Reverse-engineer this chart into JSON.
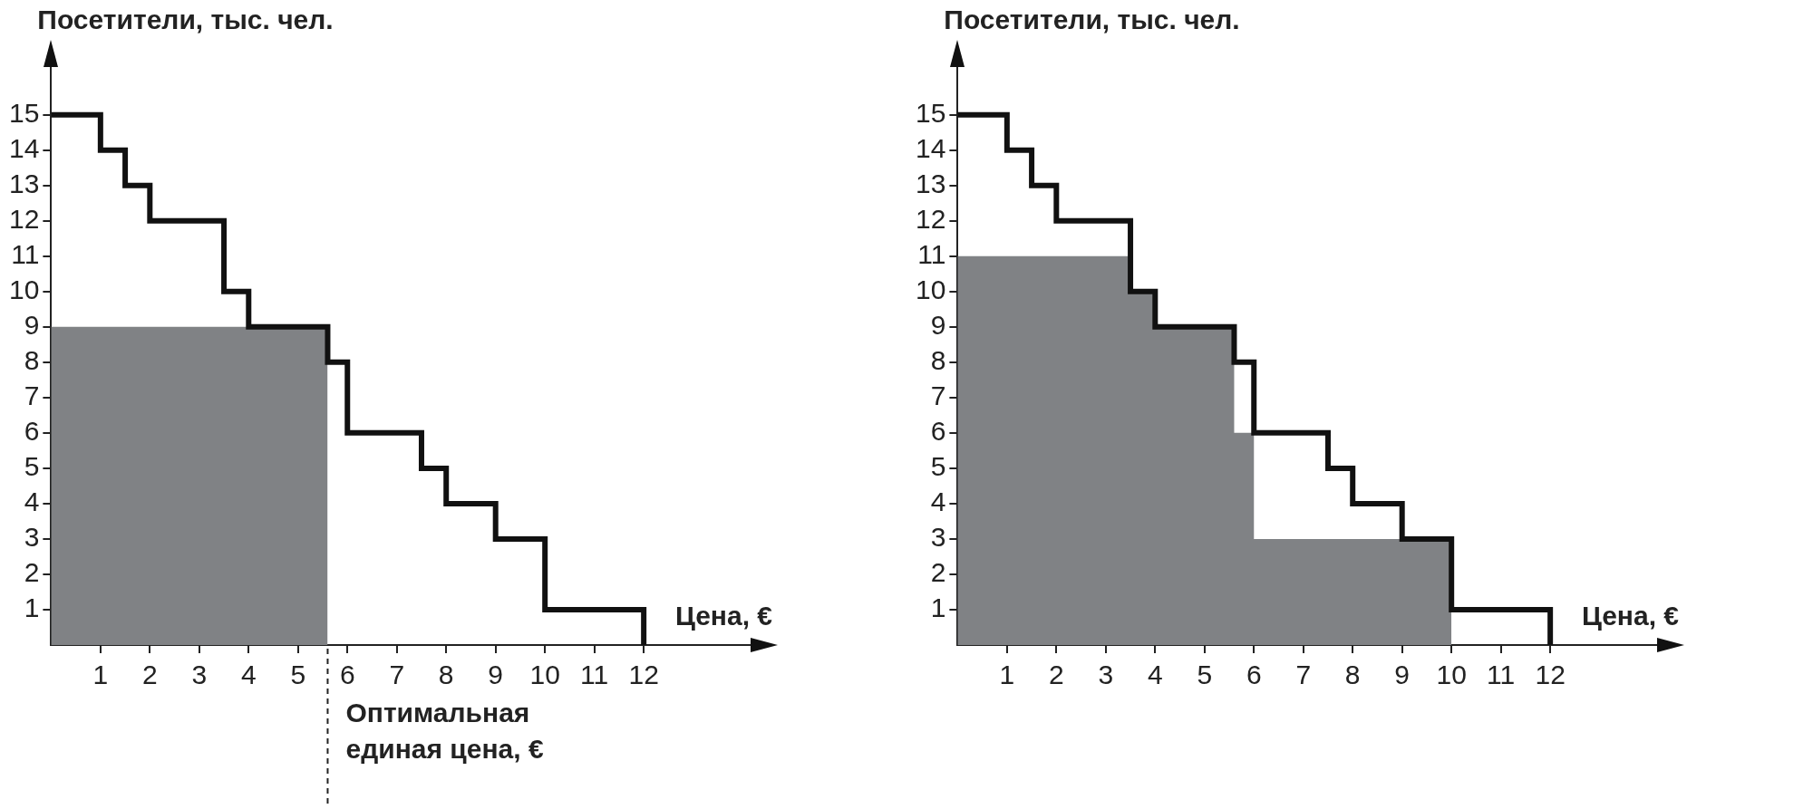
{
  "chart_data": [
    {
      "type": "step",
      "xlabel": "Цена, €",
      "ylabel": "Посетители, тыс. чел.",
      "xlim": [
        0,
        14.2
      ],
      "ylim": [
        0,
        16.4
      ],
      "xticks": [
        1,
        2,
        3,
        4,
        5,
        6,
        7,
        8,
        9,
        10,
        11,
        12
      ],
      "yticks": [
        1,
        2,
        3,
        4,
        5,
        6,
        7,
        8,
        9,
        10,
        11,
        12,
        13,
        14,
        15
      ],
      "grid": false,
      "legend": false,
      "series": [
        {
          "type": "area",
          "color": "#808285",
          "x": [
            0,
            5.6
          ],
          "values": [
            9,
            0
          ]
        },
        {
          "type": "step",
          "color": "#111111",
          "x": [
            0,
            1,
            1.5,
            2,
            3.5,
            4,
            5.6,
            6,
            7.5,
            8,
            9,
            10,
            12
          ],
          "values": [
            15,
            14,
            13,
            12,
            10,
            9,
            8,
            6,
            5,
            4,
            3,
            1,
            0
          ]
        }
      ],
      "ref_lines": [
        {
          "axis": "x",
          "value": 5.6,
          "label": "Оптимальная единая цена, €",
          "line_style": "dashed"
        }
      ]
    },
    {
      "type": "step",
      "xlabel": "Цена, €",
      "ylabel": "Посетители, тыс. чел.",
      "xlim": [
        0,
        14.2
      ],
      "ylim": [
        0,
        16.4
      ],
      "xticks": [
        1,
        2,
        3,
        4,
        5,
        6,
        7,
        8,
        9,
        10,
        11,
        12
      ],
      "yticks": [
        1,
        2,
        3,
        4,
        5,
        6,
        7,
        8,
        9,
        10,
        11,
        12,
        13,
        14,
        15
      ],
      "grid": false,
      "legend": false,
      "series": [
        {
          "type": "area",
          "color": "#808285",
          "x": [
            0,
            3.5,
            4,
            5.6,
            6,
            10
          ],
          "values": [
            11,
            10,
            9,
            6,
            3,
            0
          ]
        },
        {
          "type": "step",
          "color": "#111111",
          "x": [
            0,
            1,
            1.5,
            2,
            3.5,
            4,
            5.6,
            6,
            7.5,
            8,
            9,
            10,
            12
          ],
          "values": [
            15,
            14,
            13,
            12,
            10,
            9,
            8,
            6,
            5,
            4,
            3,
            1,
            0
          ]
        }
      ]
    }
  ]
}
